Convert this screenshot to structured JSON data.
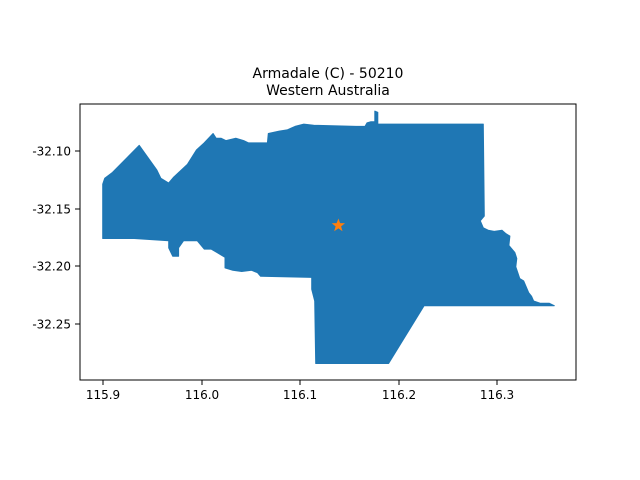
{
  "chart_data": {
    "type": "map",
    "title": "Armadale (C) - 50210",
    "subtitle": "Western Australia",
    "xlabel": "",
    "ylabel": "",
    "xlim": [
      115.875,
      116.378
    ],
    "ylim": [
      -32.299,
      -32.065
    ],
    "xticks": [
      "115.9",
      "116.0",
      "116.1",
      "116.2",
      "116.3"
    ],
    "yticks": [
      "-32.10",
      "-32.15",
      "-32.20",
      "-32.25"
    ],
    "grid": false,
    "region_color": "#1f77b4",
    "marker_color": "#ff7f0e",
    "marker_shape": "star",
    "centroid": [
      116.137,
      -32.168
    ],
    "region_outline": [
      [
        115.898,
        -32.179
      ],
      [
        115.898,
        -32.133
      ],
      [
        115.9,
        -32.128
      ],
      [
        115.908,
        -32.123
      ],
      [
        115.935,
        -32.1
      ],
      [
        115.953,
        -32.121
      ],
      [
        115.957,
        -32.128
      ],
      [
        115.965,
        -32.132
      ],
      [
        115.97,
        -32.127
      ],
      [
        115.984,
        -32.116
      ],
      [
        115.993,
        -32.104
      ],
      [
        116.001,
        -32.098
      ],
      [
        116.01,
        -32.09
      ],
      [
        116.013,
        -32.094
      ],
      [
        116.018,
        -32.094
      ],
      [
        116.023,
        -32.096
      ],
      [
        116.033,
        -32.094
      ],
      [
        116.041,
        -32.096
      ],
      [
        116.046,
        -32.098
      ],
      [
        116.065,
        -32.098
      ],
      [
        116.066,
        -32.09
      ],
      [
        116.077,
        -32.088
      ],
      [
        116.085,
        -32.087
      ],
      [
        116.093,
        -32.084
      ],
      [
        116.102,
        -32.082
      ],
      [
        116.112,
        -32.083
      ],
      [
        116.155,
        -32.084
      ],
      [
        116.164,
        -32.084
      ],
      [
        116.166,
        -32.081
      ],
      [
        116.17,
        -32.08
      ],
      [
        116.174,
        -32.08
      ],
      [
        116.174,
        -32.071
      ],
      [
        116.177,
        -32.072
      ],
      [
        116.177,
        -32.082
      ],
      [
        116.219,
        -32.082
      ],
      [
        116.284,
        -32.082
      ],
      [
        116.285,
        -32.16
      ],
      [
        116.281,
        -32.164
      ],
      [
        116.284,
        -32.17
      ],
      [
        116.289,
        -32.172
      ],
      [
        116.295,
        -32.173
      ],
      [
        116.303,
        -32.172
      ],
      [
        116.307,
        -32.175
      ],
      [
        116.311,
        -32.177
      ],
      [
        116.31,
        -32.185
      ],
      [
        116.316,
        -32.191
      ],
      [
        116.318,
        -32.196
      ],
      [
        116.317,
        -32.203
      ],
      [
        116.319,
        -32.208
      ],
      [
        116.321,
        -32.213
      ],
      [
        116.325,
        -32.215
      ],
      [
        116.33,
        -32.225
      ],
      [
        116.333,
        -32.228
      ],
      [
        116.335,
        -32.232
      ],
      [
        116.342,
        -32.234
      ],
      [
        116.351,
        -32.234
      ],
      [
        116.356,
        -32.236
      ],
      [
        116.224,
        -32.236
      ],
      [
        116.188,
        -32.285
      ],
      [
        116.114,
        -32.285
      ],
      [
        116.113,
        -32.232
      ],
      [
        116.11,
        -32.222
      ],
      [
        116.11,
        -32.212
      ],
      [
        116.058,
        -32.211
      ],
      [
        116.055,
        -32.208
      ],
      [
        116.049,
        -32.206
      ],
      [
        116.039,
        -32.207
      ],
      [
        116.03,
        -32.206
      ],
      [
        116.022,
        -32.204
      ],
      [
        116.022,
        -32.195
      ],
      [
        116.014,
        -32.191
      ],
      [
        116.008,
        -32.188
      ],
      [
        116.001,
        -32.188
      ],
      [
        115.996,
        -32.183
      ],
      [
        115.994,
        -32.181
      ],
      [
        115.98,
        -32.181
      ],
      [
        115.975,
        -32.187
      ],
      [
        115.975,
        -32.194
      ],
      [
        115.969,
        -32.194
      ],
      [
        115.965,
        -32.187
      ],
      [
        115.965,
        -32.181
      ],
      [
        115.93,
        -32.179
      ]
    ]
  }
}
